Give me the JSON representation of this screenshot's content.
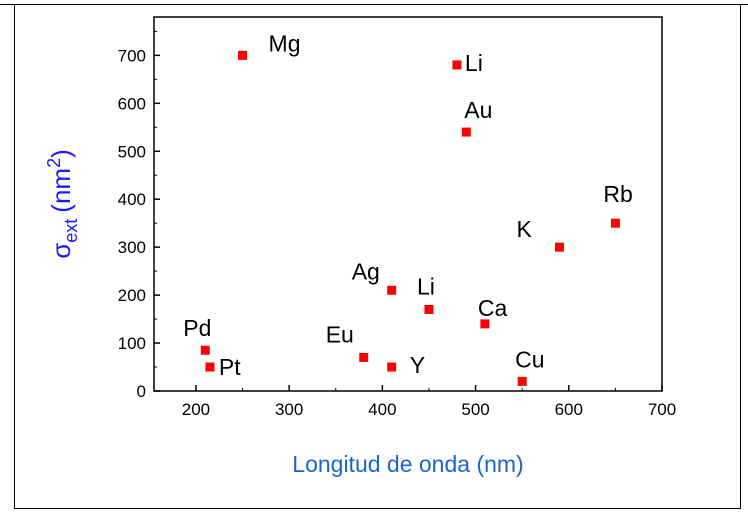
{
  "colors": {
    "marker": "#ff0000",
    "axis_label": "#1a66cc",
    "y_label": "#1a1aff",
    "axis": "#000000"
  },
  "chart_data": {
    "type": "scatter",
    "xlabel": "Longitud de onda (nm)",
    "ylabel": {
      "base": "σ",
      "sub": "ext",
      "unit_open": "(nm",
      "unit_sup": "2",
      "unit_close": ")"
    },
    "xlim": [
      155,
      700
    ],
    "ylim": [
      0,
      780
    ],
    "xticks": [
      200,
      300,
      400,
      500,
      600,
      700
    ],
    "yticks": [
      0,
      100,
      200,
      300,
      400,
      500,
      600,
      700
    ],
    "grid": false,
    "points": [
      {
        "label": "Mg",
        "x": 250,
        "y": 700
      },
      {
        "label": "Li",
        "x": 480,
        "y": 680
      },
      {
        "label": "Au",
        "x": 490,
        "y": 540
      },
      {
        "label": "Rb",
        "x": 650,
        "y": 350
      },
      {
        "label": "K",
        "x": 590,
        "y": 300
      },
      {
        "label": "Ag",
        "x": 410,
        "y": 210
      },
      {
        "label": "Li",
        "x": 450,
        "y": 170
      },
      {
        "label": "Ca",
        "x": 510,
        "y": 140
      },
      {
        "label": "Pd",
        "x": 210,
        "y": 85
      },
      {
        "label": "Pt",
        "x": 215,
        "y": 50
      },
      {
        "label": "Eu",
        "x": 380,
        "y": 70
      },
      {
        "label": "Y",
        "x": 410,
        "y": 50
      },
      {
        "label": "Cu",
        "x": 550,
        "y": 20
      }
    ]
  }
}
